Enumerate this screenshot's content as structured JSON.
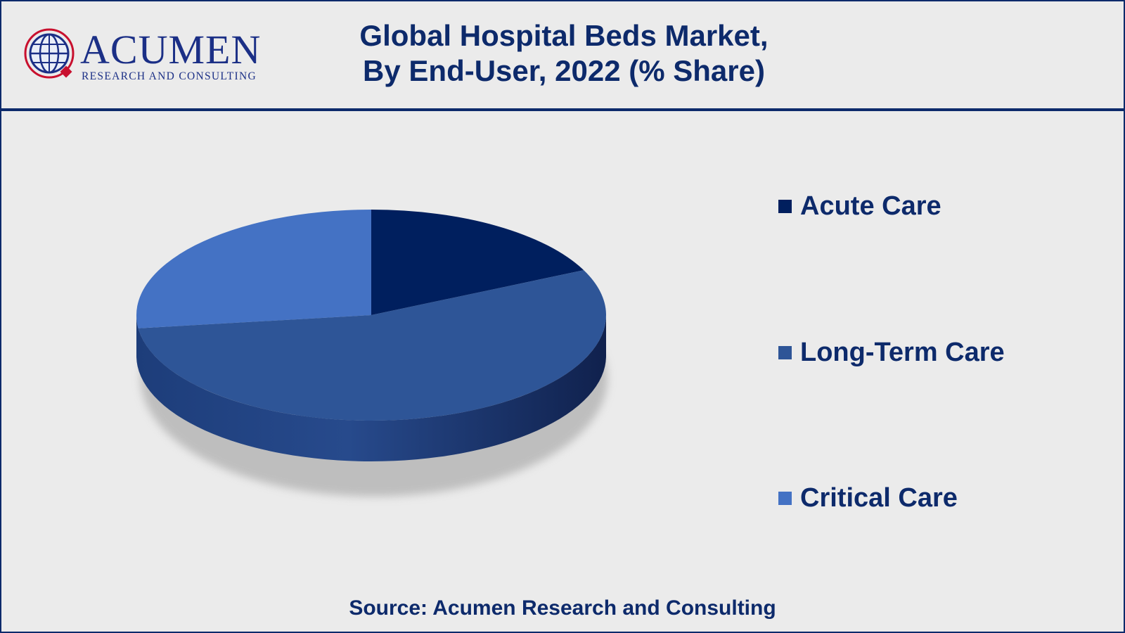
{
  "header": {
    "logo_word": "ACUMEN",
    "logo_sub": "RESEARCH AND CONSULTING",
    "title_line1": "Global Hospital Beds Market,",
    "title_line2": "By End-User, 2022 (% Share)"
  },
  "chart_data": {
    "type": "pie",
    "style": "3d",
    "categories": [
      "Acute Care",
      "Long-Term Care",
      "Critical Care"
    ],
    "values": [
      18,
      55,
      27
    ],
    "colors": [
      "#001f5e",
      "#2e5597",
      "#4472c4"
    ],
    "legend_position": "right"
  },
  "legend": {
    "items": [
      "Acute Care",
      "Long-Term Care",
      "Critical Care"
    ]
  },
  "footer": {
    "source": "Source: Acumen Research and Consulting"
  }
}
